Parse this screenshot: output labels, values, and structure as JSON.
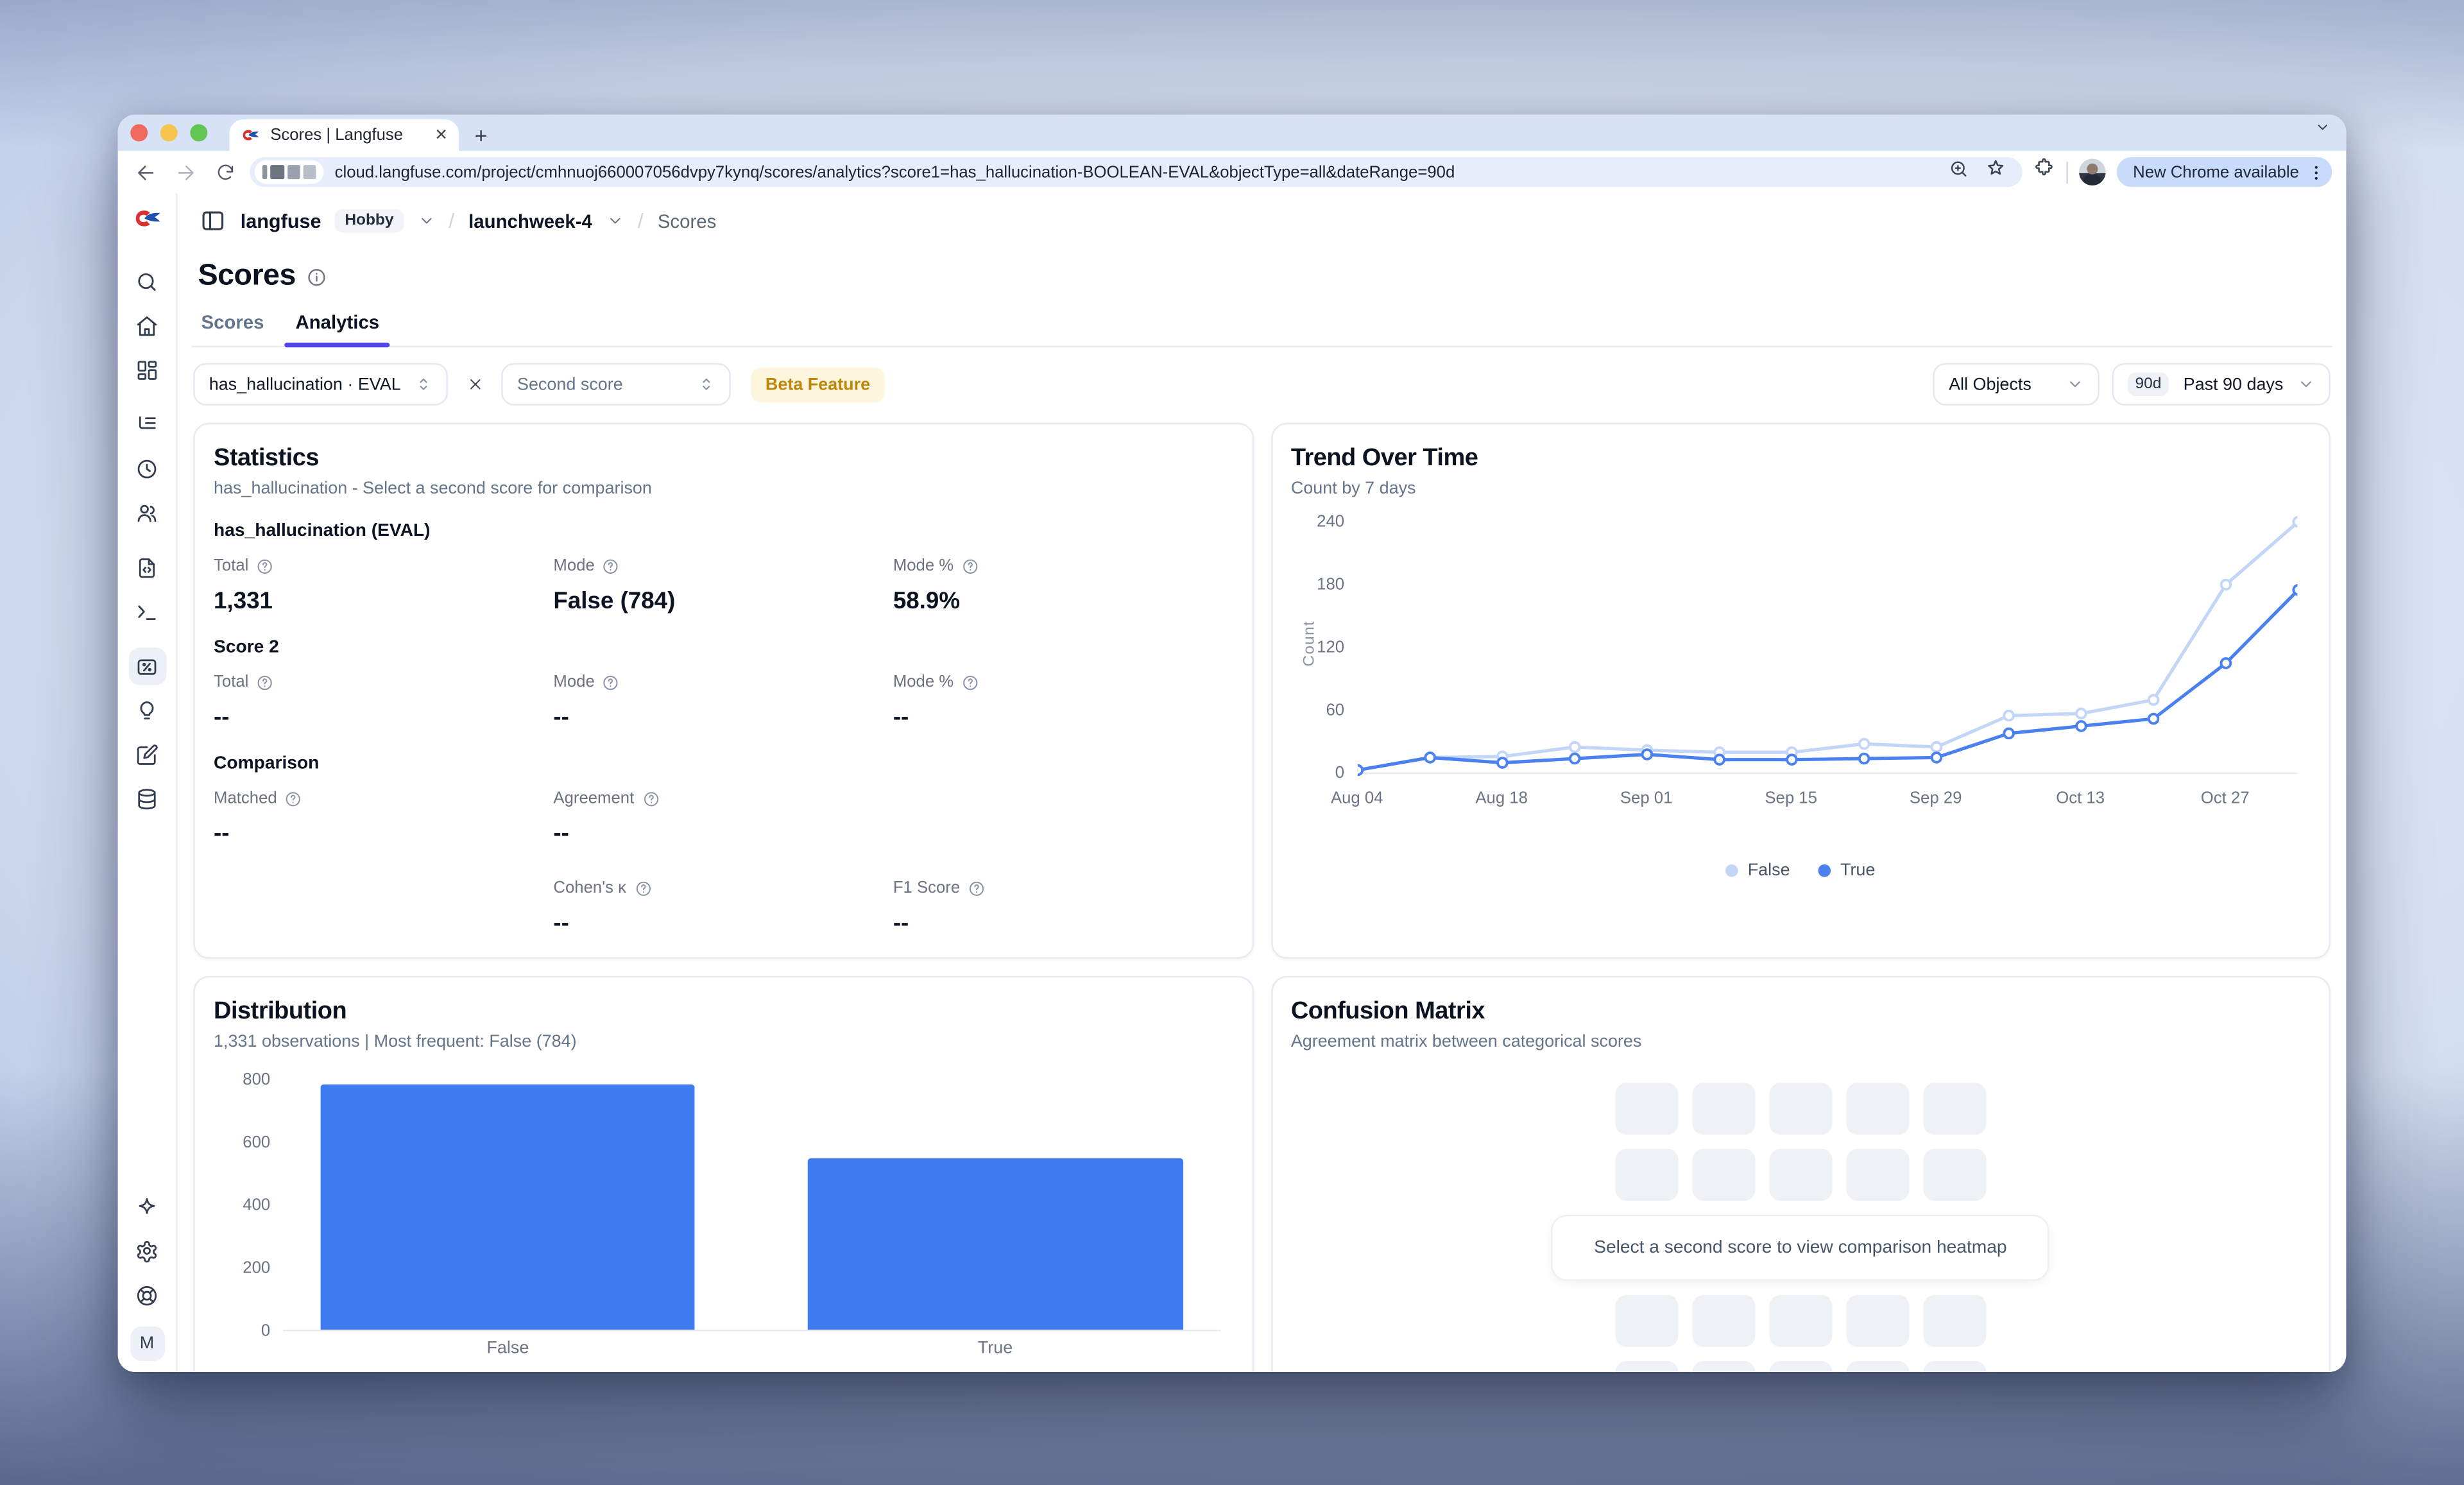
{
  "browser": {
    "tab_title": "Scores | Langfuse",
    "url": "cloud.langfuse.com/project/cmhnuoj660007056dvpy7kynq/scores/analytics?score1=has_hallucination-BOOLEAN-EVAL&objectType=all&dateRange=90d",
    "update_chip": "New Chrome available",
    "icons": [
      "back-arrow",
      "forward-arrow",
      "reload",
      "zoom-in",
      "star",
      "extensions-puzzle",
      "profile-avatar",
      "kebab-menu",
      "new-tab-plus",
      "tab-close",
      "tab-search-chevron"
    ]
  },
  "app": {
    "breadcrumb": {
      "org": "langfuse",
      "plan": "Hobby",
      "project": "launchweek-4",
      "page": "Scores"
    },
    "page_title": "Scores",
    "tabs": [
      {
        "label": "Scores"
      },
      {
        "label": "Analytics"
      }
    ],
    "filters": {
      "score1": "has_hallucination · EVAL",
      "score2_placeholder": "Second score",
      "beta_badge": "Beta Feature",
      "object_filter": "All Objects",
      "range_badge": "90d",
      "range_label": "Past 90 days"
    },
    "sidebar": {
      "icons": [
        "search",
        "home",
        "dashboard",
        "tracing",
        "sessions",
        "users",
        "prompts",
        "playground",
        "scores",
        "evaluation",
        "annotation",
        "datasets"
      ],
      "active_icon": "scores",
      "bottom_icons": [
        "sparkles",
        "settings",
        "support"
      ],
      "avatar_initial": "M"
    }
  },
  "cards": {
    "statistics": {
      "title": "Statistics",
      "subtitle": "has_hallucination - Select a second score for comparison",
      "score1_heading": "has_hallucination (EVAL)",
      "score1": {
        "total_label": "Total",
        "total": "1,331",
        "mode_label": "Mode",
        "mode": "False (784)",
        "modepct_label": "Mode %",
        "modepct": "58.9%"
      },
      "score2_heading": "Score 2",
      "score2": {
        "total_label": "Total",
        "total": "--",
        "mode_label": "Mode",
        "mode": "--",
        "modepct_label": "Mode %",
        "modepct": "--"
      },
      "comparison_heading": "Comparison",
      "comparison": {
        "matched_label": "Matched",
        "matched": "--",
        "agreement_label": "Agreement",
        "agreement": "--",
        "cohens_label": "Cohen's κ",
        "cohens": "--",
        "f1_label": "F1 Score",
        "f1": "--"
      }
    },
    "confusion": {
      "title": "Confusion Matrix",
      "subtitle": "Agreement matrix between categorical scores",
      "placeholder": "Select a second score to view comparison heatmap"
    }
  },
  "chart_data": [
    {
      "id": "trend",
      "type": "line",
      "title": "Trend Over Time",
      "subtitle": "Count by 7 days",
      "ylabel": "Count",
      "ylim": [
        0,
        240
      ],
      "yticks": [
        0,
        60,
        120,
        180,
        240
      ],
      "x": [
        "Aug 04",
        "Aug 11",
        "Aug 18",
        "Aug 25",
        "Sep 01",
        "Sep 08",
        "Sep 15",
        "Sep 22",
        "Sep 29",
        "Oct 06",
        "Oct 13",
        "Oct 20",
        "Oct 27",
        "Nov 03"
      ],
      "xtick_labels": [
        "Aug 04",
        "Aug 18",
        "Sep 01",
        "Sep 15",
        "Sep 29",
        "Oct 13",
        "Oct 27"
      ],
      "grid": false,
      "legend_position": "bottom",
      "series": [
        {
          "name": "False",
          "color": "#c3d6f8",
          "values": [
            3,
            15,
            16,
            25,
            22,
            20,
            20,
            28,
            25,
            55,
            57,
            70,
            180,
            240
          ]
        },
        {
          "name": "True",
          "color": "#4a80ef",
          "values": [
            3,
            15,
            10,
            14,
            18,
            13,
            13,
            14,
            15,
            38,
            45,
            52,
            105,
            175
          ]
        }
      ]
    },
    {
      "id": "distribution",
      "type": "bar",
      "title": "Distribution",
      "subtitle": "1,331 observations | Most frequent: False (784)",
      "categories": [
        "False",
        "True"
      ],
      "values": [
        784,
        547
      ],
      "series_name": "has_hallucination",
      "bar_color": "#3e7bf0",
      "ylim": [
        0,
        800
      ],
      "yticks": [
        0,
        200,
        400,
        600,
        800
      ],
      "legend_position": "bottom"
    }
  ]
}
